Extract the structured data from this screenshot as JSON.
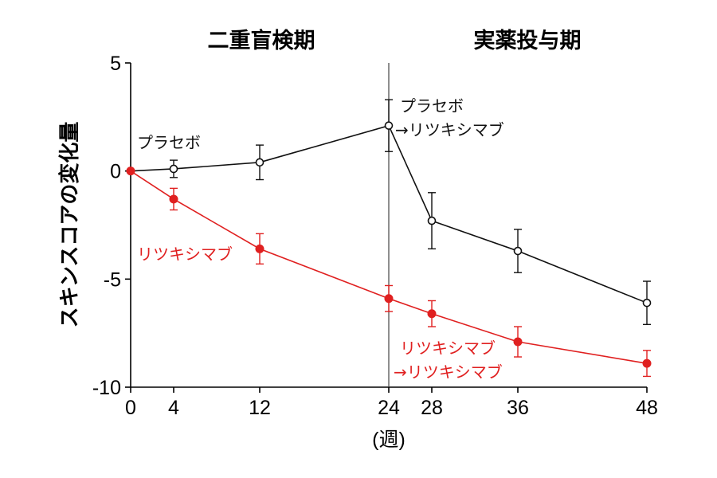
{
  "chart_data": {
    "type": "line",
    "title": "",
    "xlabel": "(週)",
    "ylabel": "スキンスコアの変化量",
    "ylim": [
      -10,
      5
    ],
    "xlim": [
      0,
      48
    ],
    "xticks": [
      0,
      4,
      12,
      24,
      28,
      36,
      48
    ],
    "yticks": [
      5,
      0,
      -5,
      -10
    ],
    "ytick_labels": [
      "5",
      "0",
      "-5",
      "-10"
    ],
    "phase_divider_x": 24,
    "phases": [
      "二重盲検期",
      "実薬投与期"
    ],
    "series": [
      {
        "color": "#111111",
        "marker": "open-circle",
        "labels": [
          "プラセボ",
          "プラセボ",
          "→リツキシマブ"
        ],
        "x": [
          0,
          4,
          12,
          24,
          28,
          36,
          48
        ],
        "y": [
          0,
          0.1,
          0.4,
          2.1,
          -2.3,
          -3.7,
          -6.1
        ],
        "err": [
          0,
          0.4,
          0.8,
          1.2,
          1.3,
          1.0,
          1.0
        ]
      },
      {
        "color": "#e02020",
        "marker": "filled-circle",
        "labels": [
          "リツキシマブ",
          "リツキシマブ",
          "→リツキシマブ"
        ],
        "x": [
          0,
          4,
          12,
          24,
          28,
          36,
          48
        ],
        "y": [
          0,
          -1.3,
          -3.6,
          -5.9,
          -6.6,
          -7.9,
          -8.9
        ],
        "err": [
          0,
          0.5,
          0.7,
          0.6,
          0.6,
          0.7,
          0.6
        ]
      }
    ]
  }
}
